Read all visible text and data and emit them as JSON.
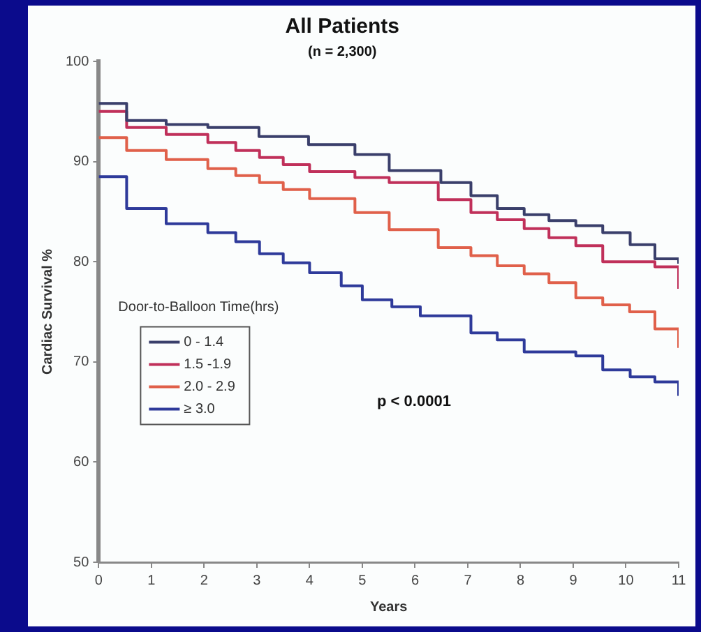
{
  "chart_data": {
    "type": "step",
    "title": "All Patients",
    "subtitle": "(n = 2,300)",
    "xlabel": "Years",
    "ylabel": "Cardiac Survival %",
    "legend_title": "Door-to-Balloon Time(hrs)",
    "legend": "left",
    "grid": false,
    "marker": "none",
    "xlim": [
      0,
      11
    ],
    "xticks": [
      0,
      1,
      2,
      3,
      4,
      5,
      6,
      7,
      8,
      9,
      10,
      11
    ],
    "ylim": [
      50,
      100
    ],
    "yticks": [
      50,
      60,
      70,
      80,
      90,
      100
    ],
    "annotations": [
      "p < 0.0001"
    ],
    "series": [
      {
        "name": "0 - 1.4",
        "color": "#3a3f6b",
        "x": [
          0,
          0.53,
          1.28,
          2.07,
          3.04,
          3.98,
          4.86,
          5.51,
          6.49,
          7.06,
          7.56,
          8.07,
          8.54,
          9.05,
          9.56,
          10.08,
          10.55,
          11
        ],
        "values": [
          95.8,
          94.1,
          93.7,
          93.4,
          92.5,
          91.7,
          90.7,
          89.1,
          87.9,
          86.6,
          85.3,
          84.7,
          84.1,
          83.6,
          82.9,
          81.7,
          80.3,
          79.8
        ]
      },
      {
        "name": "1.5 -1.9",
        "color": "#c0305a",
        "x": [
          0,
          0.53,
          1.28,
          2.07,
          2.6,
          3.05,
          3.5,
          4.0,
          4.86,
          5.51,
          6.44,
          7.06,
          7.56,
          8.07,
          8.54,
          9.05,
          9.56,
          10.55,
          11
        ],
        "values": [
          95.0,
          93.4,
          92.7,
          91.9,
          91.1,
          90.4,
          89.7,
          89.0,
          88.4,
          87.9,
          86.2,
          84.9,
          84.2,
          83.3,
          82.4,
          81.6,
          80.0,
          79.5,
          77.3
        ]
      },
      {
        "name": "2.0 - 2.9",
        "color": "#e0604a",
        "x": [
          0,
          0.53,
          1.28,
          2.07,
          2.6,
          3.05,
          3.5,
          4.0,
          4.86,
          5.51,
          6.44,
          7.06,
          7.56,
          8.07,
          8.54,
          9.05,
          9.56,
          10.07,
          10.55,
          11
        ],
        "values": [
          92.4,
          91.1,
          90.2,
          89.3,
          88.6,
          87.9,
          87.2,
          86.3,
          84.9,
          83.2,
          81.4,
          80.6,
          79.6,
          78.8,
          77.9,
          76.4,
          75.7,
          75.0,
          73.3,
          71.4
        ]
      },
      {
        "name": "≥ 3.0",
        "color": "#2e3a9a",
        "x": [
          0,
          0.53,
          1.28,
          2.07,
          2.6,
          3.05,
          3.5,
          4.0,
          4.6,
          5.0,
          5.56,
          6.1,
          7.06,
          7.56,
          8.07,
          9.05,
          9.56,
          10.08,
          10.55,
          11
        ],
        "values": [
          88.5,
          85.3,
          83.8,
          82.9,
          82.0,
          80.8,
          79.9,
          78.9,
          77.6,
          76.2,
          75.5,
          74.6,
          72.9,
          72.2,
          71.0,
          70.6,
          69.2,
          68.5,
          68.0,
          66.6
        ]
      }
    ]
  }
}
